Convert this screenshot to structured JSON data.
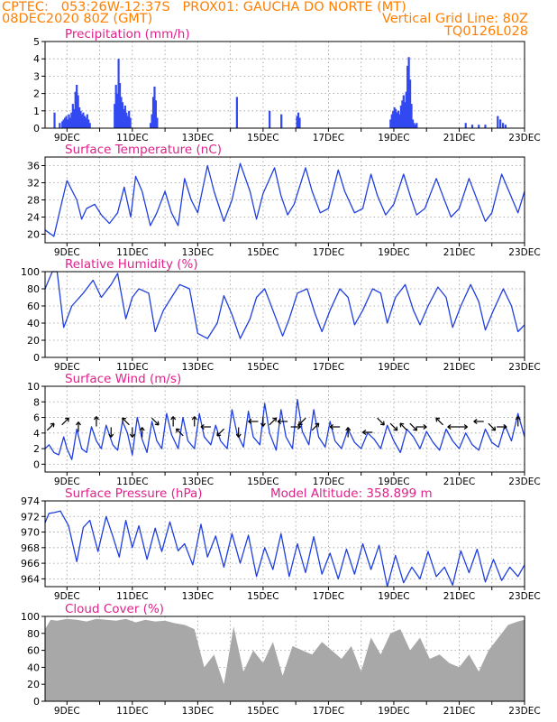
{
  "header": {
    "line1": "CPTEC:   053:26W-12:37S   PROX01: GAUCHA DO NORTE (MT)",
    "line2": "08DEC2020 80Z (GMT)",
    "grid_note": "Vertical Grid Line: 80Z",
    "run_id": "TQ0126L028"
  },
  "colors": {
    "header": "#ff7f00",
    "title": "#e0218a",
    "series": "#1f3fe0",
    "bar": "#3248f0",
    "cloud": "#a8a8a8",
    "grid": "#9a9a9a",
    "arrow": "#000000"
  },
  "x_ticks": [
    "9DEC",
    "11DEC",
    "13DEC",
    "15DEC",
    "17DEC",
    "19DEC",
    "21DEC",
    "23DEC"
  ],
  "x_range_days": [
    8.33,
    23.0
  ],
  "chart_data": [
    {
      "type": "bar",
      "title": "Precipitation (mm/h)",
      "ylim": [
        0,
        5
      ],
      "yticks": [
        "0",
        "1",
        "2",
        "3",
        "4",
        "5"
      ],
      "grid": true,
      "x": [
        8.62,
        8.78,
        8.86,
        8.9,
        8.94,
        8.98,
        9.02,
        9.06,
        9.1,
        9.14,
        9.18,
        9.22,
        9.26,
        9.3,
        9.34,
        9.38,
        9.42,
        9.46,
        9.5,
        9.54,
        9.58,
        9.62,
        9.66,
        9.7,
        10.46,
        10.5,
        10.54,
        10.58,
        10.62,
        10.66,
        10.7,
        10.74,
        10.78,
        10.82,
        10.86,
        10.9,
        10.94,
        11.56,
        11.6,
        11.64,
        11.68,
        11.72,
        11.76,
        14.2,
        15.2,
        15.56,
        16.04,
        16.08,
        16.12,
        18.9,
        18.94,
        18.98,
        19.02,
        19.06,
        19.1,
        19.14,
        19.18,
        19.22,
        19.26,
        19.3,
        19.34,
        19.38,
        19.42,
        19.46,
        19.5,
        19.54,
        19.58,
        19.62,
        19.66,
        19.7,
        21.2,
        21.4,
        21.6,
        21.8,
        22.18,
        22.26,
        22.34,
        22.42
      ],
      "values": [
        0.9,
        0.3,
        0.4,
        0.5,
        0.6,
        0.7,
        0.5,
        0.8,
        0.6,
        0.9,
        1.4,
        1.1,
        2.1,
        2.5,
        1.9,
        1.2,
        1.0,
        0.8,
        0.9,
        0.7,
        0.6,
        0.8,
        0.5,
        0.3,
        1.4,
        2.5,
        2.0,
        4.0,
        2.6,
        1.8,
        1.5,
        1.1,
        1.3,
        0.9,
        0.7,
        1.0,
        0.6,
        0.3,
        0.8,
        1.8,
        2.4,
        1.6,
        0.6,
        1.8,
        1.0,
        0.8,
        0.7,
        0.9,
        0.6,
        0.5,
        0.8,
        1.0,
        1.2,
        1.1,
        0.9,
        1.0,
        0.8,
        1.3,
        1.6,
        1.9,
        1.5,
        2.1,
        3.6,
        4.1,
        2.8,
        1.4,
        0.5,
        0.3,
        0.2,
        0.3,
        0.3,
        0.2,
        0.2,
        0.2,
        0.7,
        0.5,
        0.3,
        0.2
      ]
    },
    {
      "type": "line",
      "title": "Surface Temperature (nC)",
      "ylim": [
        18,
        38
      ],
      "yticks": [
        "20",
        "24",
        "28",
        "32",
        "36"
      ],
      "grid": true,
      "x": [
        8.33,
        8.6,
        8.8,
        9.0,
        9.3,
        9.45,
        9.6,
        9.85,
        10.05,
        10.3,
        10.55,
        10.75,
        10.95,
        11.1,
        11.3,
        11.55,
        11.75,
        12.0,
        12.2,
        12.4,
        12.6,
        12.8,
        13.0,
        13.3,
        13.5,
        13.8,
        14.05,
        14.3,
        14.6,
        14.8,
        15.0,
        15.35,
        15.55,
        15.75,
        15.95,
        16.3,
        16.5,
        16.75,
        17.0,
        17.3,
        17.5,
        17.8,
        18.05,
        18.3,
        18.5,
        18.75,
        19.0,
        19.3,
        19.5,
        19.7,
        19.95,
        20.3,
        20.5,
        20.75,
        21.0,
        21.3,
        21.5,
        21.8,
        22.0,
        22.3,
        22.55,
        22.8,
        23.0
      ],
      "values": [
        21,
        19.5,
        26,
        32.5,
        28,
        23.5,
        26,
        27,
        24.5,
        22.5,
        25,
        31,
        24,
        33.5,
        30,
        22,
        25,
        30,
        25,
        22,
        33,
        28,
        25,
        36,
        30,
        23,
        28,
        36.5,
        30,
        23.5,
        29.5,
        35.5,
        29,
        24.5,
        27,
        35.5,
        30,
        25,
        26,
        35,
        30,
        25,
        26,
        34,
        29,
        24.5,
        27,
        34,
        29,
        24.5,
        26,
        33,
        29,
        24,
        26,
        33,
        29,
        23,
        25,
        34,
        29.5,
        25,
        30
      ]
    },
    {
      "type": "line",
      "title": "Relative Humidity (%)",
      "ylim": [
        0,
        100
      ],
      "yticks": [
        "0",
        "20",
        "40",
        "60",
        "80",
        "100"
      ],
      "grid": true,
      "x": [
        8.33,
        8.55,
        8.7,
        8.9,
        9.15,
        9.5,
        9.8,
        10.05,
        10.35,
        10.55,
        10.8,
        11.0,
        11.2,
        11.5,
        11.7,
        11.95,
        12.2,
        12.45,
        12.75,
        13.0,
        13.3,
        13.6,
        13.8,
        14.05,
        14.3,
        14.6,
        14.8,
        15.05,
        15.3,
        15.6,
        15.8,
        16.05,
        16.35,
        16.6,
        16.8,
        17.05,
        17.35,
        17.6,
        17.8,
        18.05,
        18.35,
        18.6,
        18.8,
        19.05,
        19.35,
        19.6,
        19.8,
        20.05,
        20.35,
        20.6,
        20.8,
        21.05,
        21.35,
        21.6,
        21.8,
        22.05,
        22.35,
        22.6,
        22.8,
        23.0
      ],
      "values": [
        80,
        100,
        100,
        35,
        60,
        75,
        90,
        70,
        85,
        98,
        45,
        70,
        80,
        75,
        30,
        55,
        70,
        85,
        80,
        28,
        22,
        40,
        72,
        50,
        22,
        45,
        70,
        80,
        55,
        25,
        45,
        75,
        80,
        50,
        30,
        55,
        80,
        70,
        38,
        55,
        80,
        75,
        40,
        70,
        85,
        55,
        38,
        60,
        82,
        70,
        35,
        60,
        85,
        65,
        32,
        55,
        80,
        60,
        30,
        38
      ]
    },
    {
      "type": "line",
      "title": "Surface Wind (m/s)",
      "ylim": [
        -1,
        10
      ],
      "yticks": [
        "0",
        "2",
        "4",
        "6",
        "8",
        "10"
      ],
      "grid": true,
      "x": [
        8.33,
        8.45,
        8.6,
        8.75,
        8.9,
        9.0,
        9.15,
        9.3,
        9.45,
        9.6,
        9.75,
        9.9,
        10.05,
        10.2,
        10.4,
        10.55,
        10.7,
        10.85,
        11.0,
        11.15,
        11.3,
        11.45,
        11.6,
        11.75,
        11.9,
        12.05,
        12.2,
        12.4,
        12.55,
        12.7,
        12.9,
        13.05,
        13.2,
        13.4,
        13.55,
        13.7,
        13.9,
        14.05,
        14.2,
        14.4,
        14.55,
        14.7,
        14.9,
        15.05,
        15.2,
        15.4,
        15.55,
        15.7,
        15.9,
        16.05,
        16.2,
        16.4,
        16.55,
        16.7,
        16.9,
        17.05,
        17.2,
        17.4,
        17.6,
        17.8,
        18.0,
        18.2,
        18.4,
        18.6,
        18.8,
        19.0,
        19.2,
        19.4,
        19.6,
        19.8,
        20.0,
        20.2,
        20.4,
        20.6,
        20.8,
        21.0,
        21.2,
        21.4,
        21.6,
        21.8,
        22.0,
        22.2,
        22.4,
        22.6,
        22.8,
        23.0
      ],
      "values": [
        2,
        2.5,
        1.5,
        1.2,
        3.5,
        2,
        0.6,
        4.5,
        2,
        1.5,
        4.8,
        3,
        2,
        5,
        2.5,
        1.8,
        5.5,
        4,
        1.2,
        6,
        3.2,
        1.5,
        5.5,
        3,
        2,
        6.5,
        3.8,
        2,
        6,
        3,
        2,
        6.5,
        3.5,
        2.5,
        5,
        3,
        2,
        7,
        4,
        2.2,
        6.8,
        3.5,
        2.5,
        7.8,
        4,
        1.8,
        7,
        3.5,
        2,
        8.3,
        4.2,
        2.5,
        7,
        3.5,
        2.2,
        5.5,
        3,
        2,
        4.5,
        2.8,
        2,
        4,
        3.2,
        2,
        5,
        3,
        1.5,
        4.5,
        3.5,
        2,
        4.2,
        2.8,
        1.8,
        4.5,
        3,
        2,
        4,
        2.5,
        1.8,
        4.5,
        2.8,
        2.2,
        5,
        3,
        6.5,
        3.5
      ],
      "wind_arrows": [
        {
          "x": 8.5,
          "dir": "NE"
        },
        {
          "x": 8.95,
          "dir": "NE"
        },
        {
          "x": 9.35,
          "dir": "N"
        },
        {
          "x": 9.9,
          "dir": "N"
        },
        {
          "x": 10.35,
          "dir": "S"
        },
        {
          "x": 10.8,
          "dir": "NW"
        },
        {
          "x": 11.0,
          "dir": "S"
        },
        {
          "x": 11.3,
          "dir": "N"
        },
        {
          "x": 11.7,
          "dir": "SE"
        },
        {
          "x": 12.25,
          "dir": "N"
        },
        {
          "x": 12.45,
          "dir": "NW"
        },
        {
          "x": 12.9,
          "dir": "N"
        },
        {
          "x": 13.25,
          "dir": "W"
        },
        {
          "x": 13.7,
          "dir": "SW"
        },
        {
          "x": 14.25,
          "dir": "S"
        },
        {
          "x": 14.7,
          "dir": "W"
        },
        {
          "x": 15.0,
          "dir": "S"
        },
        {
          "x": 15.3,
          "dir": "NE"
        },
        {
          "x": 15.6,
          "dir": "W"
        },
        {
          "x": 16.0,
          "dir": "E"
        },
        {
          "x": 16.2,
          "dir": "SW"
        },
        {
          "x": 16.6,
          "dir": "NE"
        },
        {
          "x": 17.2,
          "dir": "W"
        },
        {
          "x": 17.6,
          "dir": "N"
        },
        {
          "x": 18.2,
          "dir": "W"
        },
        {
          "x": 18.6,
          "dir": "SE"
        },
        {
          "x": 19.0,
          "dir": "SE"
        },
        {
          "x": 19.3,
          "dir": "NW"
        },
        {
          "x": 19.6,
          "dir": "SE"
        },
        {
          "x": 19.85,
          "dir": "E"
        },
        {
          "x": 20.4,
          "dir": "NW"
        },
        {
          "x": 20.8,
          "dir": "W"
        },
        {
          "x": 21.1,
          "dir": "E"
        },
        {
          "x": 21.6,
          "dir": "W"
        },
        {
          "x": 22.0,
          "dir": "SE"
        },
        {
          "x": 22.3,
          "dir": "E"
        },
        {
          "x": 22.8,
          "dir": "N"
        }
      ]
    },
    {
      "type": "line",
      "title": "Surface Pressure (hPa)",
      "annotation": "Model Altitude: 358.899  m",
      "ylim": [
        963,
        974
      ],
      "yticks": [
        "964",
        "966",
        "968",
        "970",
        "972",
        "974"
      ],
      "grid": true,
      "x": [
        8.33,
        8.45,
        8.6,
        8.8,
        9.05,
        9.3,
        9.5,
        9.7,
        9.95,
        10.2,
        10.4,
        10.6,
        10.8,
        11.0,
        11.2,
        11.45,
        11.7,
        11.9,
        12.15,
        12.4,
        12.6,
        12.85,
        13.1,
        13.3,
        13.55,
        13.8,
        14.05,
        14.3,
        14.55,
        14.8,
        15.05,
        15.3,
        15.55,
        15.8,
        16.05,
        16.3,
        16.55,
        16.8,
        17.05,
        17.3,
        17.55,
        17.8,
        18.05,
        18.3,
        18.55,
        18.8,
        19.05,
        19.3,
        19.55,
        19.8,
        20.05,
        20.3,
        20.55,
        20.8,
        21.05,
        21.3,
        21.55,
        21.8,
        22.05,
        22.3,
        22.55,
        22.8,
        23.0
      ],
      "values": [
        971.2,
        972.4,
        972.5,
        972.7,
        970.8,
        966.2,
        970.6,
        971.5,
        967.5,
        972.0,
        969.5,
        966.8,
        971.5,
        968.0,
        970.8,
        966.5,
        970.5,
        967.5,
        971.3,
        967.6,
        968.5,
        965.8,
        971.0,
        966.8,
        969.5,
        965.5,
        969.8,
        966.0,
        969.6,
        964.3,
        968.0,
        965.2,
        969.8,
        964.3,
        968.5,
        964.8,
        969.4,
        964.6,
        967.3,
        964.0,
        967.8,
        964.6,
        968.5,
        965.2,
        968.3,
        963.0,
        967.0,
        963.5,
        965.5,
        964.0,
        967.5,
        964.3,
        965.5,
        963.2,
        967.6,
        964.8,
        967.8,
        963.6,
        966.5,
        963.8,
        965.5,
        964.3,
        965.8
      ]
    },
    {
      "type": "area",
      "title": "Cloud Cover (%)",
      "ylim": [
        0,
        100
      ],
      "yticks": [
        "0",
        "20",
        "40",
        "60",
        "80",
        "100"
      ],
      "grid": true,
      "x": [
        8.33,
        8.5,
        8.7,
        9.0,
        9.3,
        9.6,
        9.9,
        10.2,
        10.5,
        10.8,
        11.1,
        11.4,
        11.7,
        12.0,
        12.3,
        12.6,
        12.9,
        13.2,
        13.5,
        13.8,
        14.1,
        14.4,
        14.7,
        15.0,
        15.3,
        15.6,
        15.9,
        16.2,
        16.5,
        16.8,
        17.1,
        17.4,
        17.7,
        18.0,
        18.3,
        18.6,
        18.9,
        19.2,
        19.5,
        19.8,
        20.1,
        20.4,
        20.7,
        21.0,
        21.3,
        21.6,
        21.9,
        22.2,
        22.5,
        22.8,
        23.0
      ],
      "values": [
        85,
        96,
        95,
        97,
        96,
        94,
        97,
        96,
        95,
        97,
        93,
        96,
        94,
        95,
        92,
        90,
        85,
        40,
        55,
        20,
        88,
        35,
        60,
        45,
        70,
        30,
        65,
        60,
        55,
        70,
        60,
        50,
        65,
        35,
        75,
        55,
        80,
        85,
        60,
        75,
        50,
        55,
        45,
        40,
        55,
        35,
        60,
        75,
        90,
        94,
        96
      ]
    }
  ]
}
